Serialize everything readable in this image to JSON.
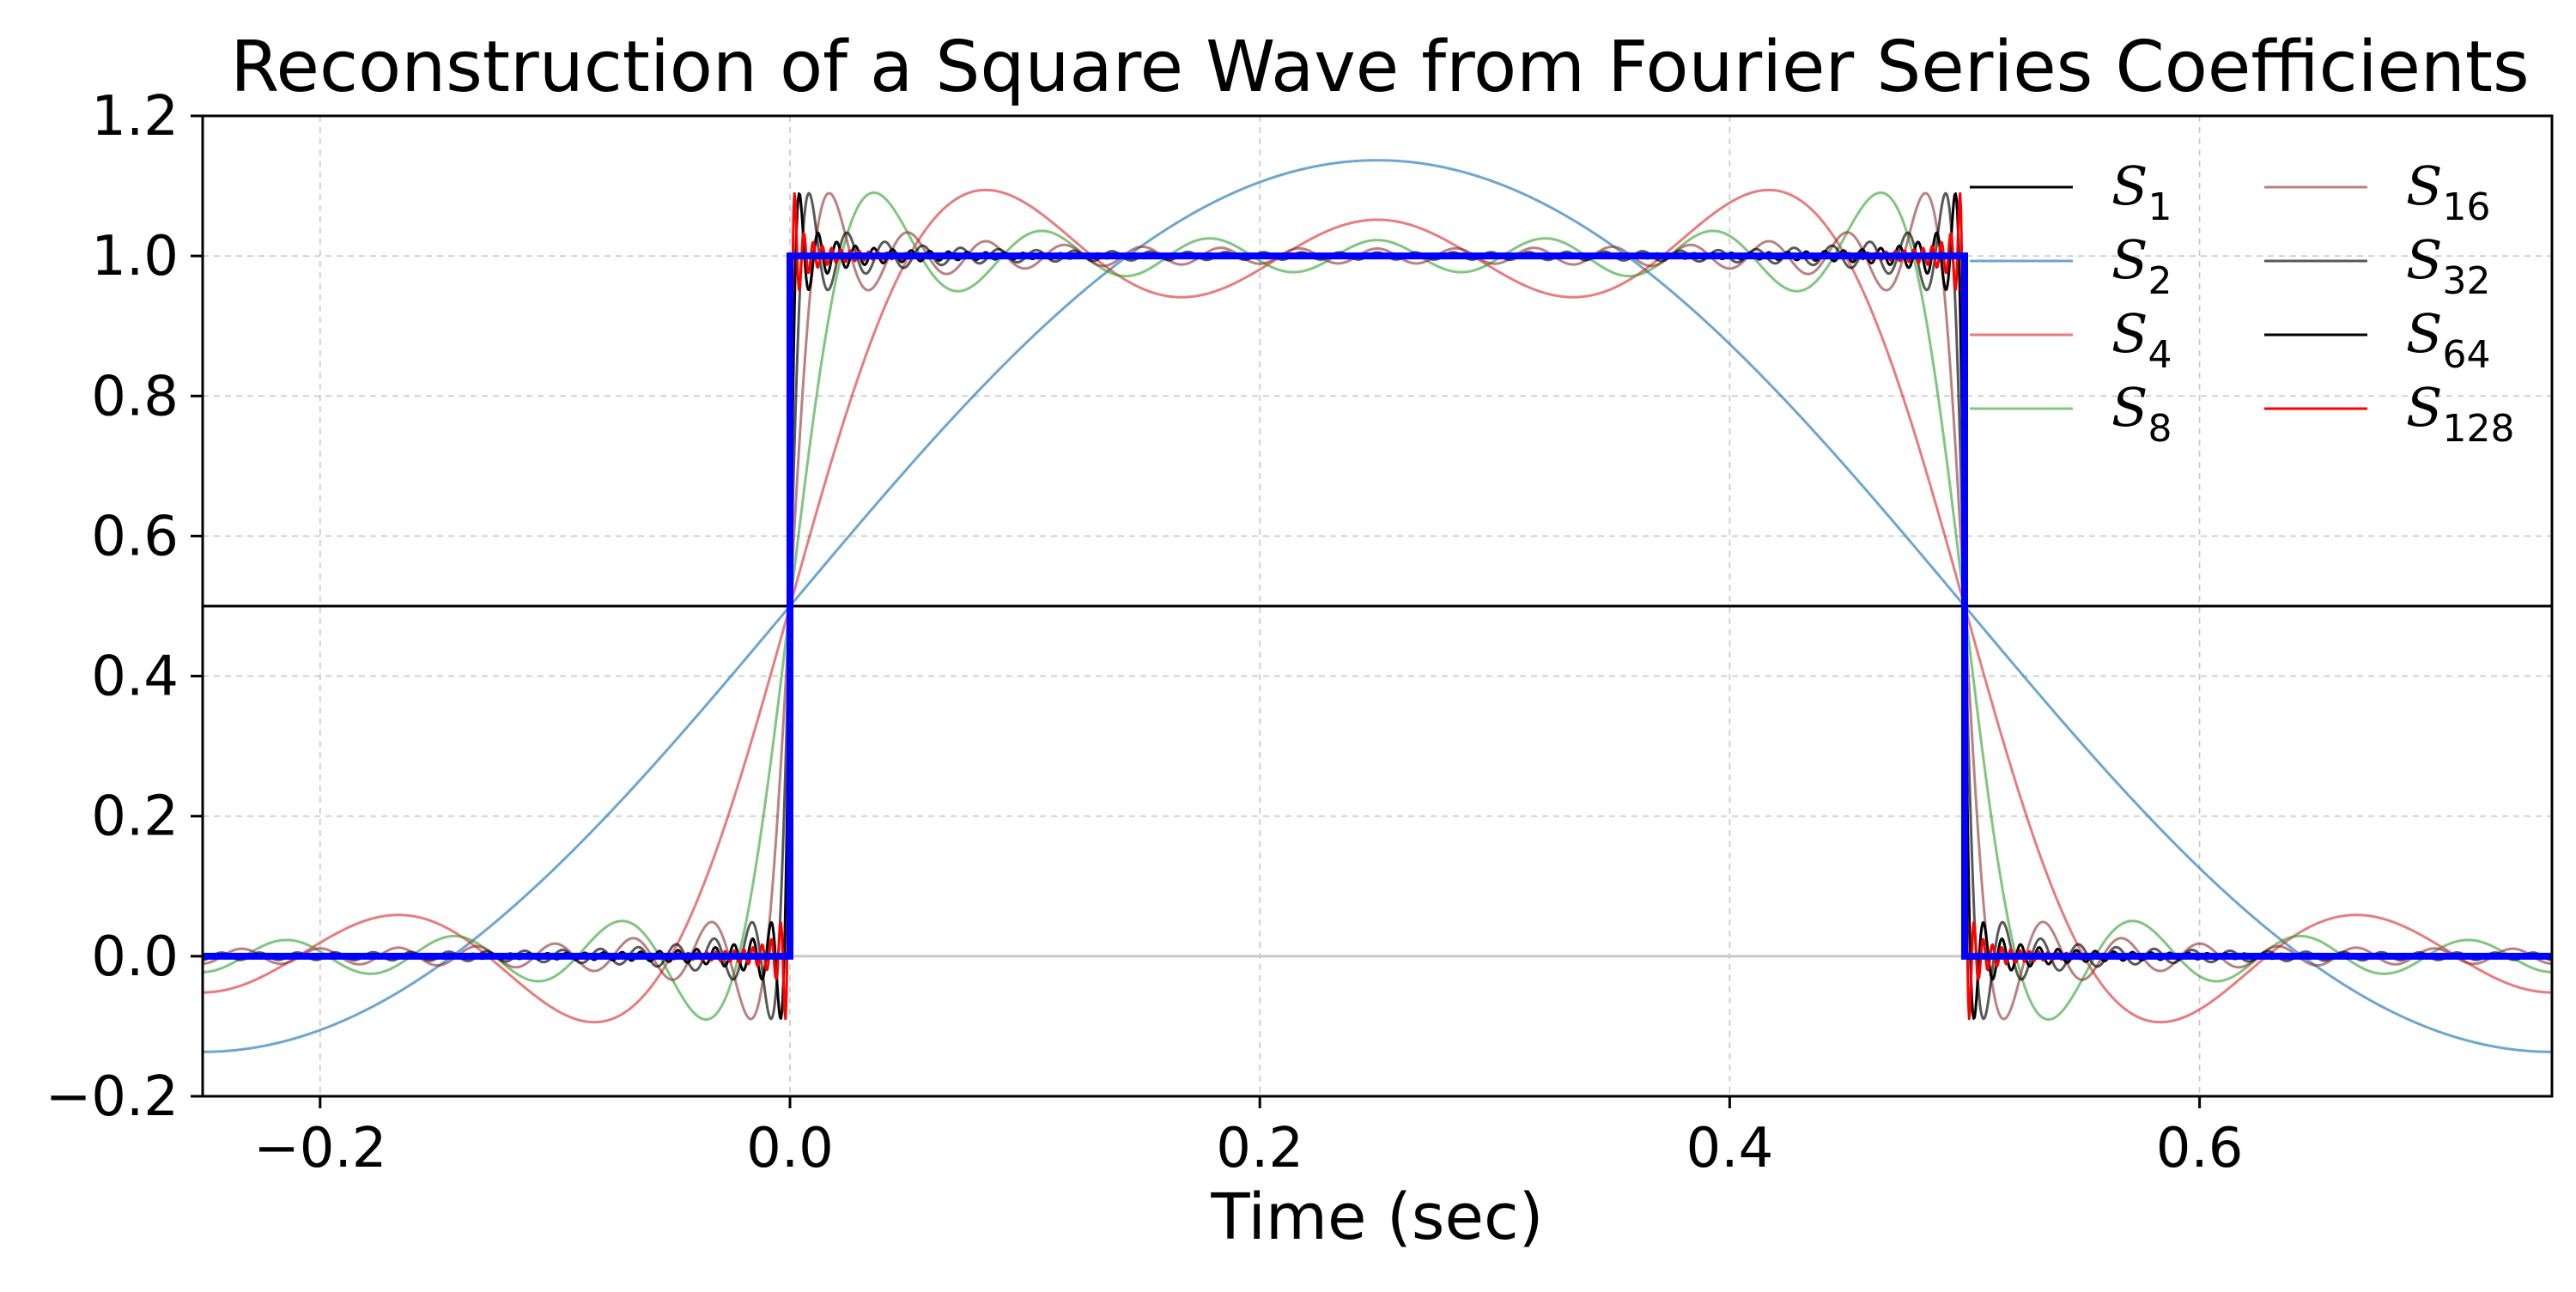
{
  "chart_data": {
    "type": "line",
    "title": "Reconstruction of a Square Wave from Fourier Series Coefficients",
    "xlabel": "Time (sec)",
    "ylabel": "",
    "xlim": [
      -0.25,
      0.75
    ],
    "ylim": [
      -0.2,
      1.2
    ],
    "xticks": [
      -0.2,
      0.0,
      0.2,
      0.4,
      0.6
    ],
    "xtick_labels": [
      "−0.2",
      "0.0",
      "0.2",
      "0.4",
      "0.6"
    ],
    "yticks": [
      -0.2,
      0.0,
      0.2,
      0.4,
      0.6,
      0.8,
      1.0,
      1.2
    ],
    "ytick_labels": [
      "−0.2",
      "0.0",
      "0.2",
      "0.4",
      "0.6",
      "0.8",
      "1.0",
      "1.2"
    ],
    "grid": true,
    "legend_placement": "top-right",
    "period": 1.0,
    "series": [
      {
        "name": "S",
        "subscript": "1",
        "terms": 1,
        "color": "#000000",
        "opacity": 1.0
      },
      {
        "name": "S",
        "subscript": "2",
        "terms": 2,
        "color": "#1f77b4",
        "opacity": 0.65
      },
      {
        "name": "S",
        "subscript": "4",
        "terms": 4,
        "color": "#d62728",
        "opacity": 0.6
      },
      {
        "name": "S",
        "subscript": "8",
        "terms": 8,
        "color": "#2ca02c",
        "opacity": 0.6
      },
      {
        "name": "S",
        "subscript": "16",
        "terms": 16,
        "color": "#8c2d2d",
        "opacity": 0.6
      },
      {
        "name": "S",
        "subscript": "32",
        "terms": 32,
        "color": "#000000",
        "opacity": 0.65
      },
      {
        "name": "S",
        "subscript": "64",
        "terms": 64,
        "color": "#000000",
        "opacity": 1.0
      },
      {
        "name": "S",
        "subscript": "128",
        "terms": 128,
        "color": "#ff0000",
        "opacity": 1.0
      }
    ],
    "square_wave": {
      "color": "#0000ff",
      "points": [
        [
          -0.25,
          0
        ],
        [
          0.0,
          0
        ],
        [
          0.0,
          1
        ],
        [
          0.5,
          1
        ],
        [
          0.5,
          0
        ],
        [
          0.75,
          0
        ]
      ]
    }
  }
}
